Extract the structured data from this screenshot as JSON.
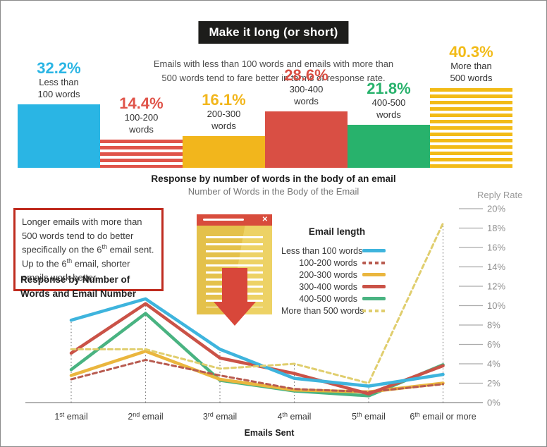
{
  "header": {
    "title": "Make it long (or short)",
    "subtitle_line1": "Emails with less than 100 words and emails with more than",
    "subtitle_line2": "500 words tend to fare better in terms of response rate."
  },
  "annotation": {
    "segments": [
      {
        "text": "Longer emails with more than 500 words tend to do better specifically on the 6"
      },
      {
        "text": "th",
        "sup": true
      },
      {
        "text": " email sent. Up to the 6"
      },
      {
        "text": "th",
        "sup": true
      },
      {
        "text": " email, shorter emails work better."
      }
    ]
  },
  "line_section": {
    "title_line1": "Response by Number of",
    "title_line2": "Words and Email Number"
  },
  "email_icon": {
    "close_glyph": "✕"
  },
  "chart_data": [
    {
      "type": "bar",
      "title": "Response by number of words in the body of an email",
      "subtitle": "Number of Words in the Body of the Email",
      "categories": [
        "Less than 100 words",
        "100-200 words",
        "200-300 words",
        "300-400 words",
        "400-500 words",
        "More than 500 words"
      ],
      "values": [
        32.2,
        14.4,
        16.1,
        28.6,
        21.8,
        40.3
      ],
      "value_labels": [
        "32.2%",
        "14.4%",
        "16.1%",
        "28.6%",
        "21.8%",
        "40.3%"
      ],
      "label_lines": [
        [
          "Less than",
          "100 words"
        ],
        [
          "100-200",
          "words"
        ],
        [
          "200-300",
          "words"
        ],
        [
          "300-400",
          "words"
        ],
        [
          "400-500",
          "words"
        ],
        [
          "More than",
          "500 words"
        ]
      ],
      "colors": [
        "#2ab5e4",
        "#e0544a",
        "#f2b61c",
        "#d94f44",
        "#28b26c",
        "#f2bb17"
      ],
      "striped": [
        false,
        true,
        false,
        false,
        false,
        true
      ],
      "ylim": [
        0,
        45
      ]
    },
    {
      "type": "line",
      "legend_title": "Email length",
      "xlabel": "Emails Sent",
      "ylabel": "Reply Rate",
      "categories": [
        "1st email",
        "2nd email",
        "3rd email",
        "4th email",
        "5th email",
        "6th email or more"
      ],
      "ylim": [
        0,
        20
      ],
      "ytick_step": 2,
      "ytick_labels": [
        "0%",
        "2%",
        "4%",
        "6%",
        "8%",
        "10%",
        "12%",
        "14%",
        "16%",
        "18%",
        "20%"
      ],
      "legend_position": "upper-middle",
      "grid": false,
      "series": [
        {
          "name": "Less than 100 words",
          "color": "#3eb4dd",
          "dashed": false,
          "values": [
            8.5,
            10.7,
            5.5,
            2.5,
            1.7,
            2.9
          ]
        },
        {
          "name": "100-200 words",
          "color": "#b85b50",
          "dashed": true,
          "values": [
            2.4,
            4.4,
            2.8,
            1.4,
            1.1,
            1.9
          ]
        },
        {
          "name": "200-300 words",
          "color": "#eab63e",
          "dashed": false,
          "values": [
            2.8,
            5.3,
            2.4,
            1.3,
            1.1,
            2.0
          ]
        },
        {
          "name": "300-400 words",
          "color": "#ca5247",
          "dashed": false,
          "values": [
            5.1,
            10.2,
            4.6,
            3.0,
            0.9,
            3.8
          ]
        },
        {
          "name": "400-500 words",
          "color": "#49b381",
          "dashed": false,
          "values": [
            3.4,
            9.2,
            2.3,
            1.2,
            0.7,
            3.9
          ]
        },
        {
          "name": "More than 500 words",
          "color": "#e0ce6e",
          "dashed": true,
          "values": [
            5.5,
            5.5,
            3.5,
            4.0,
            2.0,
            18.5
          ]
        }
      ]
    }
  ]
}
